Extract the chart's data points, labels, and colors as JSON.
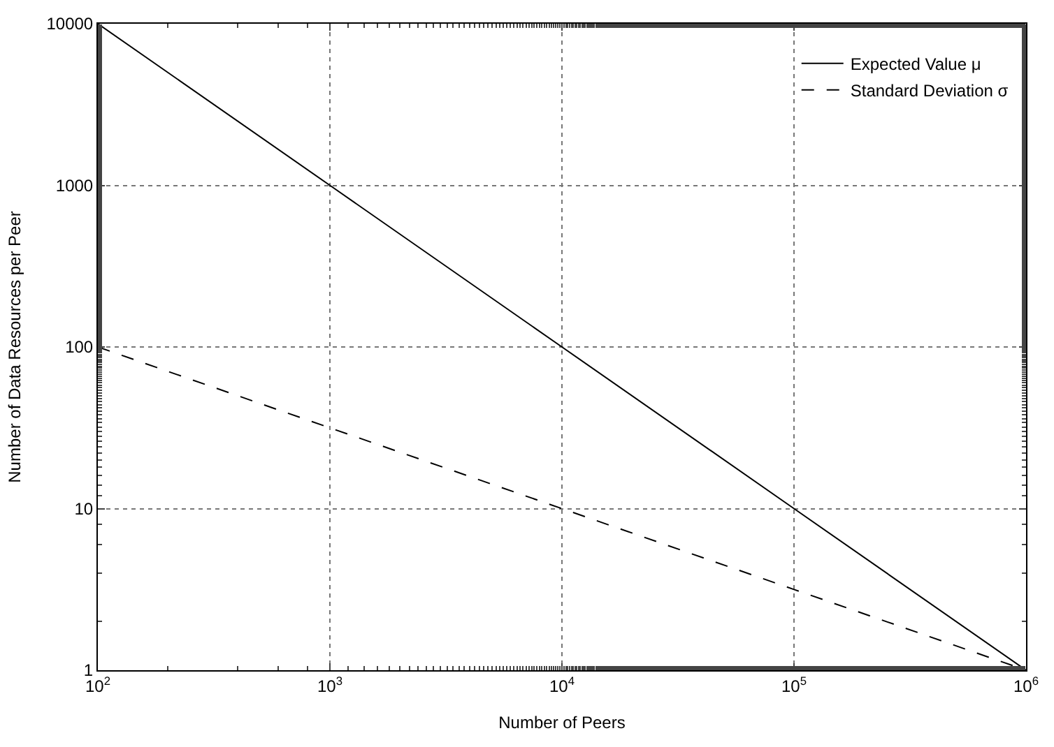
{
  "chart_data": {
    "type": "line",
    "xlabel": "Number of Peers",
    "ylabel": "Number of Data Resources per Peer",
    "log": "xy",
    "grid": true,
    "legend": "top right",
    "marker": "none",
    "x": [
      100,
      1000,
      10000,
      100000,
      1000000
    ],
    "series": [
      {
        "name": "Expected Value μ",
        "color": "#000000",
        "line_style": "solid",
        "values": [
          10000,
          1000,
          100,
          10,
          1
        ]
      },
      {
        "name": "Standard Deviation σ",
        "color": "#000000",
        "line_style": "dashed",
        "values": [
          100,
          31.6,
          10,
          3.16,
          1
        ]
      }
    ],
    "xlim": [
      100,
      1000000
    ],
    "ylim": [
      1,
      10000
    ],
    "xticks": [
      {
        "value": 100,
        "label": "10$^{2}$"
      },
      {
        "value": 1000,
        "label": "10$^{3}$"
      },
      {
        "value": 10000,
        "label": "10$^{4}$"
      },
      {
        "value": 100000,
        "label": "10$^{5}$"
      },
      {
        "value": 1000000,
        "label": "10$^{6}$"
      }
    ],
    "yticks": [
      1,
      10,
      100,
      1000,
      10000
    ]
  }
}
